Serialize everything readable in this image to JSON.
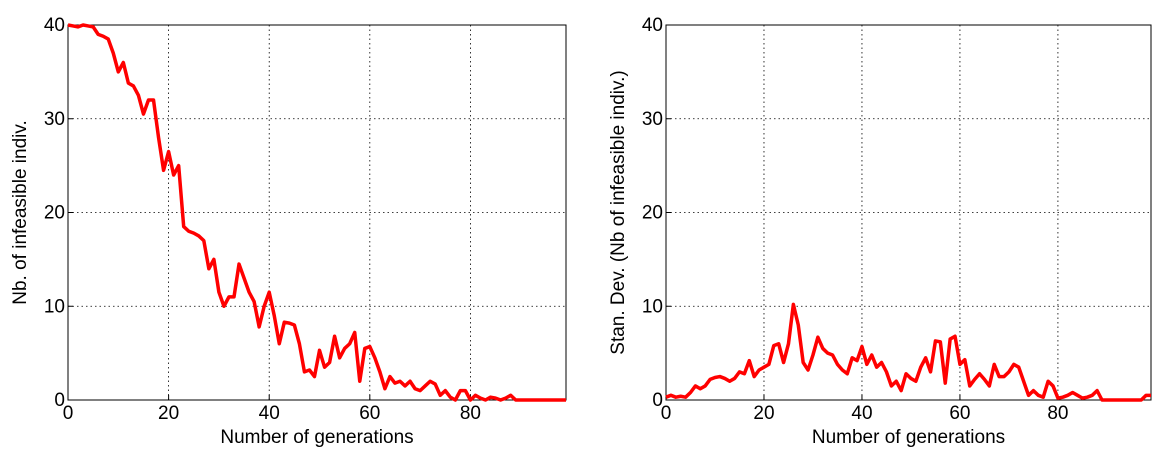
{
  "chart_data": [
    {
      "type": "line",
      "xlabel": "Number of generations",
      "ylabel": "Nb. of infeasible indiv.",
      "xlim": [
        0,
        99
      ],
      "ylim": [
        0,
        40
      ],
      "xticks": [
        0,
        20,
        40,
        60,
        80
      ],
      "yticks": [
        0,
        10,
        20,
        30,
        40
      ],
      "grid": true,
      "x": [
        0,
        1,
        2,
        3,
        4,
        5,
        6,
        7,
        8,
        9,
        10,
        11,
        12,
        13,
        14,
        15,
        16,
        17,
        18,
        19,
        20,
        21,
        22,
        23,
        24,
        25,
        26,
        27,
        28,
        29,
        30,
        31,
        32,
        33,
        34,
        35,
        36,
        37,
        38,
        39,
        40,
        41,
        42,
        43,
        44,
        45,
        46,
        47,
        48,
        49,
        50,
        51,
        52,
        53,
        54,
        55,
        56,
        57,
        58,
        59,
        60,
        61,
        62,
        63,
        64,
        65,
        66,
        67,
        68,
        69,
        70,
        71,
        72,
        73,
        74,
        75,
        76,
        77,
        78,
        79,
        80,
        81,
        82,
        83,
        84,
        85,
        86,
        87,
        88,
        89,
        90,
        91,
        92,
        93,
        94,
        95,
        96,
        97,
        98,
        99
      ],
      "series": [
        {
          "color": "#ff0000",
          "values": [
            40,
            39.9,
            39.8,
            40,
            39.9,
            39.8,
            39,
            38.8,
            38.5,
            37,
            35,
            36,
            33.8,
            33.5,
            32.5,
            30.5,
            32,
            32,
            28,
            24.5,
            26.5,
            24,
            25,
            18.5,
            18,
            17.8,
            17.5,
            17,
            14,
            15,
            11.5,
            10,
            11,
            11,
            14.5,
            13,
            11.5,
            10.5,
            7.8,
            10,
            11.5,
            9,
            6,
            8.3,
            8.2,
            8,
            6,
            3,
            3.2,
            2.5,
            5.3,
            3.5,
            4,
            6.8,
            4.5,
            5.5,
            6,
            7.2,
            2,
            5.5,
            5.7,
            4.5,
            3,
            1.2,
            2.5,
            1.8,
            2,
            1.5,
            2,
            1.2,
            1,
            1.5,
            2,
            1.7,
            0.5,
            1,
            0.3,
            0,
            1,
            1,
            0,
            0.5,
            0.2,
            0,
            0.3,
            0.2,
            0,
            0.2,
            0.5,
            0,
            0,
            0,
            0,
            0,
            0,
            0,
            0,
            0,
            0,
            0
          ]
        }
      ]
    },
    {
      "type": "line",
      "xlabel": "Number of generations",
      "ylabel": "Stan. Dev. (Nb of infeasible indiv.)",
      "xlim": [
        0,
        99
      ],
      "ylim": [
        0,
        40
      ],
      "xticks": [
        0,
        20,
        40,
        60,
        80
      ],
      "yticks": [
        0,
        10,
        20,
        30,
        40
      ],
      "grid": true,
      "x": [
        0,
        1,
        2,
        3,
        4,
        5,
        6,
        7,
        8,
        9,
        10,
        11,
        12,
        13,
        14,
        15,
        16,
        17,
        18,
        19,
        20,
        21,
        22,
        23,
        24,
        25,
        26,
        27,
        28,
        29,
        30,
        31,
        32,
        33,
        34,
        35,
        36,
        37,
        38,
        39,
        40,
        41,
        42,
        43,
        44,
        45,
        46,
        47,
        48,
        49,
        50,
        51,
        52,
        53,
        54,
        55,
        56,
        57,
        58,
        59,
        60,
        61,
        62,
        63,
        64,
        65,
        66,
        67,
        68,
        69,
        70,
        71,
        72,
        73,
        74,
        75,
        76,
        77,
        78,
        79,
        80,
        81,
        82,
        83,
        84,
        85,
        86,
        87,
        88,
        89,
        90,
        91,
        92,
        93,
        94,
        95,
        96,
        97,
        98,
        99
      ],
      "series": [
        {
          "color": "#ff0000",
          "values": [
            0.3,
            0.5,
            0.3,
            0.4,
            0.3,
            0.8,
            1.5,
            1.2,
            1.5,
            2.2,
            2.4,
            2.5,
            2.3,
            2,
            2.3,
            3,
            2.8,
            4.2,
            2.5,
            3.2,
            3.5,
            3.8,
            5.8,
            6,
            4,
            6,
            10.2,
            8,
            4,
            3.2,
            4.8,
            6.7,
            5.5,
            5,
            4.8,
            3.8,
            3.2,
            2.8,
            4.5,
            4.2,
            5.7,
            3.8,
            4.8,
            3.5,
            4,
            3,
            1.5,
            2,
            1,
            2.8,
            2.3,
            2,
            3.5,
            4.5,
            3,
            6.3,
            6.2,
            1.8,
            6.5,
            6.8,
            3.8,
            4.3,
            1.5,
            2.2,
            2.8,
            2.2,
            1.5,
            3.8,
            2.5,
            2.5,
            3,
            3.8,
            3.5,
            2,
            0.5,
            1,
            0.5,
            0.3,
            2,
            1.5,
            0.2,
            0.3,
            0.5,
            0.8,
            0.5,
            0.2,
            0.3,
            0.5,
            1,
            0,
            0,
            0,
            0,
            0,
            0,
            0,
            0,
            0,
            0.5,
            0.5
          ]
        }
      ]
    }
  ]
}
